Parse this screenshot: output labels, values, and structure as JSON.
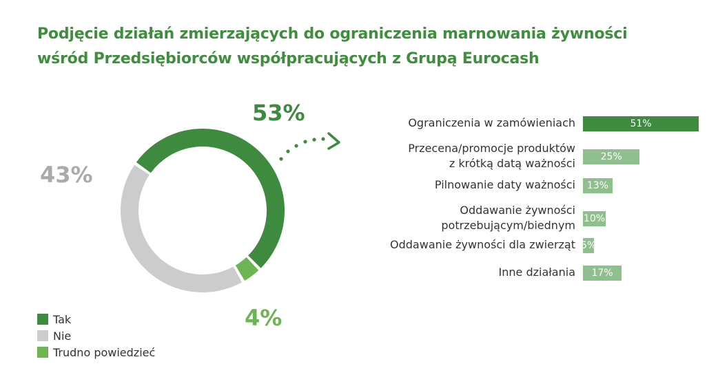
{
  "title_lines": [
    "Podjęcie działań zmierzających do ograniczenia marnowania żywności",
    "wśród Przedsiębiorców współpracujących z Grupą Eurocash"
  ],
  "colors": {
    "title": "#3e8e3e",
    "tak": "#3e8a3e",
    "nie": "#cccccc",
    "trudno": "#6cb552",
    "nie_label": "#aaaaaa",
    "trudno_label": "#6cb552",
    "bar_primary": "#3e8a3e",
    "bar_secondary": "#8fbf8f"
  },
  "chart_data": [
    {
      "type": "pie",
      "variant": "donut",
      "slices": [
        {
          "name": "Tak",
          "value": 53,
          "label": "53%"
        },
        {
          "name": "Nie",
          "value": 43,
          "label": "43%"
        },
        {
          "name": "Trudno powiedzieć",
          "value": 4,
          "label": "4%"
        }
      ],
      "legend": {
        "placement": "bottom-left",
        "items": [
          "Tak",
          "Nie",
          "Trudno powiedzieć"
        ]
      }
    },
    {
      "type": "bar",
      "orientation": "horizontal",
      "categories": [
        "Ograniczenia w zamówieniach",
        "Przecena/promocje produktów\nz krótką datą ważności",
        "Pilnowanie daty ważności",
        "Oddawanie żywności\npotrzebującym/biednym",
        "Oddawanie żywności dla zwierząt",
        "Inne działania"
      ],
      "values": [
        51,
        25,
        13,
        10,
        5,
        17
      ],
      "value_labels": [
        "51%",
        "25%",
        "13%",
        "10%",
        "5%",
        "17%"
      ],
      "xlim": [
        0,
        51
      ]
    }
  ]
}
